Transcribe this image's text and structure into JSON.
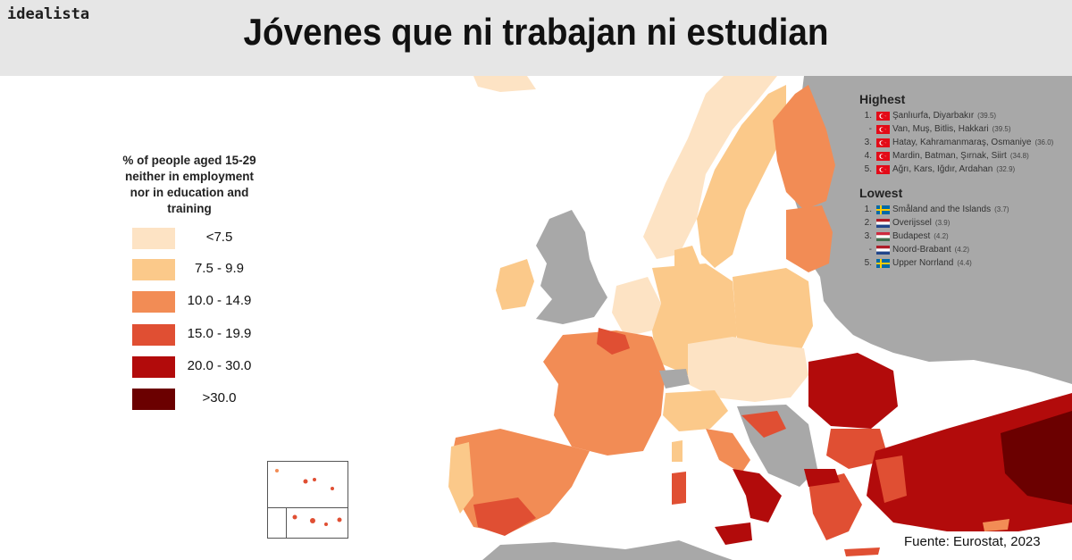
{
  "brand": "idealista",
  "title": "Jóvenes que ni trabajan ni estudian",
  "legend": {
    "title_lines": [
      "% of people aged 15-29",
      "neither in employment",
      "nor in education and",
      "training"
    ],
    "classes": [
      {
        "label": "<7.5",
        "color": "#fde3c4"
      },
      {
        "label": "7.5 - 9.9",
        "color": "#fbc98a"
      },
      {
        "label": "10.0 - 14.9",
        "color": "#f28c55"
      },
      {
        "label": "15.0 - 19.9",
        "color": "#e04f33"
      },
      {
        "label": "20.0 - 30.0",
        "color": "#b20b0b"
      },
      {
        "label": ">30.0",
        "color": "#6b0000"
      }
    ]
  },
  "colors": {
    "no_data": "#a8a8a8",
    "sea": "#ffffff",
    "header": "#e6e6e6"
  },
  "highest": {
    "heading": "Highest",
    "items": [
      {
        "rank": "1.",
        "flag": "turkey",
        "name": "Şanlıurfa, Diyarbakır",
        "value": "(39.5)"
      },
      {
        "rank": "-",
        "flag": "turkey",
        "name": "Van, Muş, Bitlis, Hakkari",
        "value": "(39.5)"
      },
      {
        "rank": "3.",
        "flag": "turkey",
        "name": "Hatay, Kahramanmaraş, Osmaniye",
        "value": "(36.0)"
      },
      {
        "rank": "4.",
        "flag": "turkey",
        "name": "Mardin, Batman, Şırnak, Siirt",
        "value": "(34.8)"
      },
      {
        "rank": "5.",
        "flag": "turkey",
        "name": "Ağrı, Kars, Iğdır, Ardahan",
        "value": "(32.9)"
      }
    ]
  },
  "lowest": {
    "heading": "Lowest",
    "items": [
      {
        "rank": "1.",
        "flag": "sweden",
        "name": "Småland and the Islands",
        "value": "(3.7)"
      },
      {
        "rank": "2.",
        "flag": "netherlands",
        "name": "Overijssel",
        "value": "(3.9)"
      },
      {
        "rank": "3.",
        "flag": "hungary",
        "name": "Budapest",
        "value": "(4.2)"
      },
      {
        "rank": "-",
        "flag": "netherlands",
        "name": "Noord-Brabant",
        "value": "(4.2)"
      },
      {
        "rank": "5.",
        "flag": "sweden",
        "name": "Upper Norrland",
        "value": "(4.4)"
      }
    ]
  },
  "source": "Fuente: Eurostat, 2023"
}
